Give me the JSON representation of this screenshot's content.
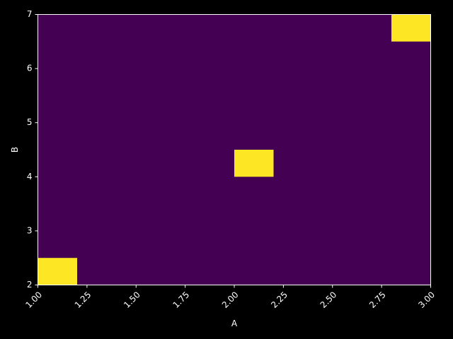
{
  "chart_data": {
    "type": "heatmap",
    "title": "",
    "xlabel": "A",
    "ylabel": "B",
    "xlim": [
      1.0,
      3.0
    ],
    "ylim": [
      2,
      7
    ],
    "x_ticks": [
      "1.00",
      "1.25",
      "1.50",
      "1.75",
      "2.00",
      "2.25",
      "2.50",
      "2.75",
      "3.00"
    ],
    "y_ticks": [
      "2",
      "3",
      "4",
      "5",
      "6",
      "7"
    ],
    "x_bins": 10,
    "y_bins": 10,
    "colormap": "viridis",
    "background_color": "#440154",
    "cells": [
      {
        "x": [
          1.0,
          1.2
        ],
        "y": [
          2.0,
          2.5
        ],
        "value": 1,
        "color": "#fde725"
      },
      {
        "x": [
          2.0,
          2.2
        ],
        "y": [
          4.0,
          4.5
        ],
        "value": 1,
        "color": "#fde725"
      },
      {
        "x": [
          2.8,
          3.0
        ],
        "y": [
          6.5,
          7.0
        ],
        "value": 1,
        "color": "#fde725"
      }
    ],
    "grid": false,
    "legend": "none",
    "page_background": "#000000",
    "axis_color": "#ffffff"
  }
}
